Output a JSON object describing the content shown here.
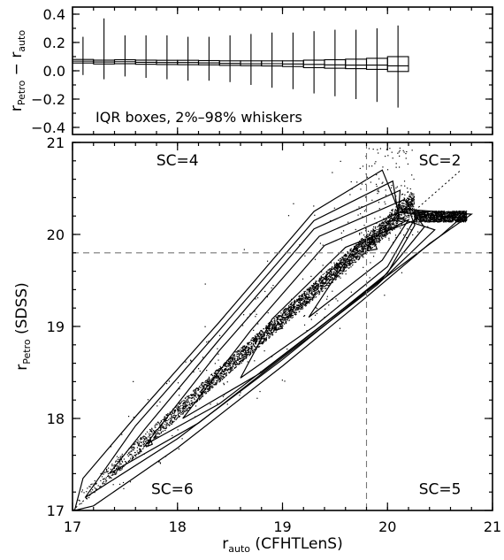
{
  "chart_data": [
    {
      "type": "box",
      "ylabel_main": "r",
      "ylabel_sub1": "Petro",
      "ylabel_mid": " − r",
      "ylabel_sub2": "auto",
      "annotation": "IQR boxes, 2%–98% whiskers",
      "ylim": [
        -0.45,
        0.45
      ],
      "y_ticks": [
        0.4,
        0.2,
        0.0,
        -0.2,
        -0.4
      ],
      "y_tick_labels": [
        "0.4",
        "0.2",
        "0.0",
        "−0.2",
        "−0.4"
      ],
      "x_ticks": [
        17,
        18,
        19,
        20,
        21
      ],
      "x_tick_labels": [
        "17",
        "18",
        "19",
        "20",
        "21"
      ],
      "xlim": [
        17,
        21
      ],
      "bins": [
        {
          "x0": 17.0,
          "x1": 17.2,
          "q1": 0.055,
          "median": 0.068,
          "q3": 0.08,
          "whisker_low": -0.03,
          "whisker_high": 0.24
        },
        {
          "x0": 17.2,
          "x1": 17.4,
          "q1": 0.048,
          "median": 0.062,
          "q3": 0.075,
          "whisker_low": -0.06,
          "whisker_high": 0.37
        },
        {
          "x0": 17.4,
          "x1": 17.6,
          "q1": 0.05,
          "median": 0.064,
          "q3": 0.078,
          "whisker_low": -0.04,
          "whisker_high": 0.25
        },
        {
          "x0": 17.6,
          "x1": 17.8,
          "q1": 0.046,
          "median": 0.06,
          "q3": 0.075,
          "whisker_low": -0.05,
          "whisker_high": 0.25
        },
        {
          "x0": 17.8,
          "x1": 18.0,
          "q1": 0.044,
          "median": 0.058,
          "q3": 0.074,
          "whisker_low": -0.06,
          "whisker_high": 0.25
        },
        {
          "x0": 18.0,
          "x1": 18.2,
          "q1": 0.043,
          "median": 0.058,
          "q3": 0.074,
          "whisker_low": -0.07,
          "whisker_high": 0.24
        },
        {
          "x0": 18.2,
          "x1": 18.4,
          "q1": 0.042,
          "median": 0.056,
          "q3": 0.072,
          "whisker_low": -0.07,
          "whisker_high": 0.24
        },
        {
          "x0": 18.4,
          "x1": 18.6,
          "q1": 0.038,
          "median": 0.052,
          "q3": 0.07,
          "whisker_low": -0.08,
          "whisker_high": 0.25
        },
        {
          "x0": 18.6,
          "x1": 18.8,
          "q1": 0.036,
          "median": 0.05,
          "q3": 0.07,
          "whisker_low": -0.1,
          "whisker_high": 0.26
        },
        {
          "x0": 18.8,
          "x1": 19.0,
          "q1": 0.034,
          "median": 0.05,
          "q3": 0.07,
          "whisker_low": -0.12,
          "whisker_high": 0.27
        },
        {
          "x0": 19.0,
          "x1": 19.2,
          "q1": 0.03,
          "median": 0.048,
          "q3": 0.07,
          "whisker_low": -0.13,
          "whisker_high": 0.27
        },
        {
          "x0": 19.2,
          "x1": 19.4,
          "q1": 0.022,
          "median": 0.045,
          "q3": 0.075,
          "whisker_low": -0.16,
          "whisker_high": 0.28
        },
        {
          "x0": 19.4,
          "x1": 19.6,
          "q1": 0.018,
          "median": 0.042,
          "q3": 0.078,
          "whisker_low": -0.18,
          "whisker_high": 0.29
        },
        {
          "x0": 19.6,
          "x1": 19.8,
          "q1": 0.015,
          "median": 0.04,
          "q3": 0.082,
          "whisker_low": -0.2,
          "whisker_high": 0.29
        },
        {
          "x0": 19.8,
          "x1": 20.0,
          "q1": 0.01,
          "median": 0.04,
          "q3": 0.088,
          "whisker_low": -0.22,
          "whisker_high": 0.3
        },
        {
          "x0": 20.0,
          "x1": 20.2,
          "q1": -0.005,
          "median": 0.035,
          "q3": 0.1,
          "whisker_low": -0.26,
          "whisker_high": 0.32
        }
      ]
    },
    {
      "type": "scatter",
      "xlabel_main": "r",
      "xlabel_sub": "auto",
      "xlabel_rest": " (CFHTLenS)",
      "ylabel_main": "r",
      "ylabel_sub": "Petro",
      "ylabel_rest": " (SDSS)",
      "xlim": [
        17,
        21
      ],
      "ylim": [
        17,
        21
      ],
      "x_ticks": [
        17,
        18,
        19,
        20,
        21
      ],
      "x_tick_labels": [
        "17",
        "18",
        "19",
        "20",
        "21"
      ],
      "y_ticks": [
        17,
        18,
        19,
        20,
        21
      ],
      "y_tick_labels": [
        "17",
        "18",
        "19",
        "20",
        "21"
      ],
      "cut_x": 19.8,
      "cut_y": 19.8,
      "regions": [
        {
          "label": "SC=4",
          "x": 18.0,
          "y": 20.75
        },
        {
          "label": "SC=2",
          "x": 20.5,
          "y": 20.75
        },
        {
          "label": "SC=6",
          "x": 17.95,
          "y": 17.18
        },
        {
          "label": "SC=5",
          "x": 20.5,
          "y": 17.18
        }
      ],
      "contours": [
        [
          [
            17.02,
            17.0
          ],
          [
            17.2,
            17.05
          ],
          [
            18.0,
            17.68
          ],
          [
            19.0,
            18.57
          ],
          [
            19.8,
            19.32
          ],
          [
            20.4,
            19.9
          ],
          [
            20.8,
            20.22
          ],
          [
            20.1,
            20.28
          ],
          [
            19.95,
            20.7
          ],
          [
            19.3,
            20.25
          ],
          [
            18.4,
            19.05
          ],
          [
            17.6,
            18.02
          ],
          [
            17.1,
            17.35
          ],
          [
            17.02,
            17.0
          ]
        ],
        [
          [
            17.12,
            17.14
          ],
          [
            18.0,
            17.78
          ],
          [
            19.0,
            18.64
          ],
          [
            19.8,
            19.38
          ],
          [
            20.5,
            19.98
          ],
          [
            20.7,
            20.18
          ],
          [
            20.1,
            20.24
          ],
          [
            20.05,
            20.58
          ],
          [
            19.3,
            20.15
          ],
          [
            18.4,
            18.96
          ],
          [
            17.6,
            17.92
          ],
          [
            17.12,
            17.14
          ]
        ],
        [
          [
            17.35,
            17.4
          ],
          [
            18.2,
            17.95
          ],
          [
            19.1,
            18.75
          ],
          [
            19.9,
            19.45
          ],
          [
            20.45,
            20.05
          ],
          [
            20.1,
            20.18
          ],
          [
            20.12,
            20.48
          ],
          [
            19.3,
            20.06
          ],
          [
            18.4,
            18.86
          ],
          [
            17.7,
            17.9
          ],
          [
            17.35,
            17.4
          ]
        ],
        [
          [
            17.7,
            17.72
          ],
          [
            18.4,
            18.16
          ],
          [
            19.2,
            18.86
          ],
          [
            19.95,
            19.52
          ],
          [
            20.35,
            20.08
          ],
          [
            20.16,
            20.38
          ],
          [
            19.35,
            19.98
          ],
          [
            18.4,
            18.74
          ],
          [
            17.7,
            17.72
          ]
        ],
        [
          [
            18.05,
            18.0
          ],
          [
            18.8,
            18.5
          ],
          [
            19.5,
            19.12
          ],
          [
            20.0,
            19.58
          ],
          [
            20.26,
            20.1
          ],
          [
            20.2,
            20.28
          ],
          [
            19.4,
            19.88
          ],
          [
            18.7,
            18.96
          ],
          [
            18.05,
            18.0
          ]
        ],
        [
          [
            18.6,
            18.44
          ],
          [
            19.3,
            19.0
          ],
          [
            20.0,
            19.65
          ],
          [
            20.25,
            20.15
          ],
          [
            19.6,
            19.86
          ],
          [
            18.9,
            19.08
          ],
          [
            18.6,
            18.44
          ]
        ],
        [
          [
            19.25,
            19.1
          ],
          [
            19.95,
            19.72
          ],
          [
            20.2,
            20.16
          ],
          [
            19.7,
            19.88
          ],
          [
            19.25,
            19.1
          ]
        ],
        [
          [
            18.92,
            18.96
          ],
          [
            19.0,
            18.98
          ],
          [
            18.96,
            19.05
          ],
          [
            18.92,
            18.96
          ]
        ],
        [
          [
            19.8,
            19.82
          ],
          [
            19.9,
            19.84
          ],
          [
            19.86,
            19.96
          ],
          [
            19.8,
            19.82
          ]
        ],
        [
          [
            17.72,
            17.7
          ],
          [
            17.76,
            17.72
          ],
          [
            17.74,
            17.78
          ],
          [
            17.72,
            17.7
          ]
        ]
      ]
    }
  ]
}
